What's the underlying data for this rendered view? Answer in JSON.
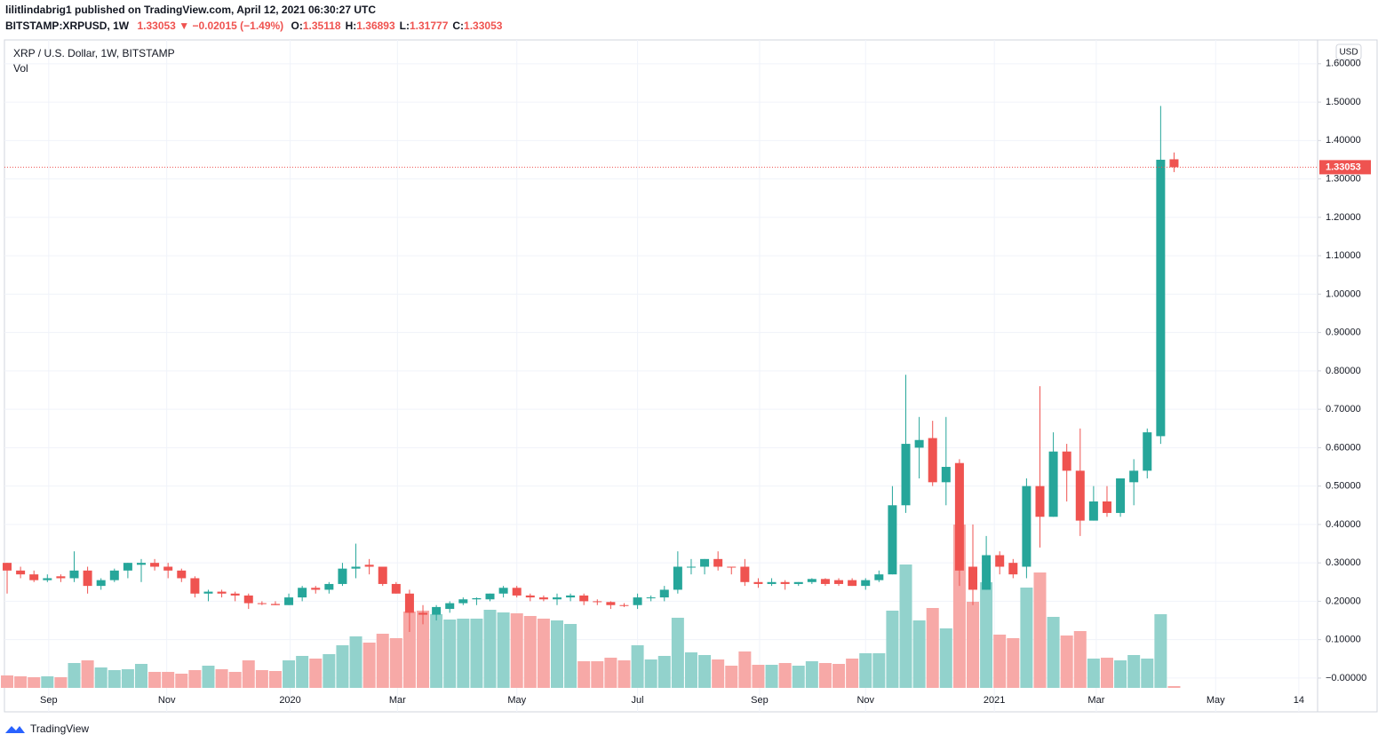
{
  "header": {
    "publisher": "lilitlindabrig1 published on TradingView.com, April 12, 2021 06:30:27 UTC",
    "symbol": "BITSTAMP:XRPUSD, 1W",
    "last": "1.33053",
    "arrow": "▼",
    "change": "−0.02015 (−1.49%)",
    "ohlc": [
      {
        "label": "O:",
        "value": "1.35118"
      },
      {
        "label": "H:",
        "value": "1.36893"
      },
      {
        "label": "L:",
        "value": "1.31777"
      },
      {
        "label": "C:",
        "value": "1.33053"
      }
    ]
  },
  "footer": {
    "brand": "TradingView"
  },
  "chart_data": {
    "type": "candlestick",
    "title": "XRP / U.S. Dollar, 1W, BITSTAMP",
    "volume_label": "Vol",
    "currency": "USD",
    "up_color": "#26a69a",
    "down_color": "#ef5350",
    "up_volume_color": "#92d2cc",
    "down_volume_color": "#f7a9a7",
    "grid": true,
    "xlim": [
      -0.2,
      97.7
    ],
    "xticks": [
      {
        "value": 3.1,
        "label": "Sep"
      },
      {
        "value": 11.9,
        "label": "Nov"
      },
      {
        "value": 21.1,
        "label": "2020"
      },
      {
        "value": 29.1,
        "label": "Mar"
      },
      {
        "value": 38.0,
        "label": "May"
      },
      {
        "value": 47.0,
        "label": "Jul"
      },
      {
        "value": 56.1,
        "label": "Sep"
      },
      {
        "value": 64.0,
        "label": "Nov"
      },
      {
        "value": 73.6,
        "label": "2021"
      },
      {
        "value": 81.2,
        "label": "Mar"
      },
      {
        "value": 90.1,
        "label": "May"
      },
      {
        "value": 96.3,
        "label": "14"
      }
    ],
    "ylim": [
      -0.088,
      1.662
    ],
    "yticks": [
      {
        "value": 0,
        "label": "−0.00000"
      },
      {
        "value": 0.1,
        "label": "0.10000"
      },
      {
        "value": 0.2,
        "label": "0.20000"
      },
      {
        "value": 0.3,
        "label": "0.30000"
      },
      {
        "value": 0.4,
        "label": "0.40000"
      },
      {
        "value": 0.5,
        "label": "0.50000"
      },
      {
        "value": 0.6,
        "label": "0.60000"
      },
      {
        "value": 0.7,
        "label": "0.70000"
      },
      {
        "value": 0.8,
        "label": "0.80000"
      },
      {
        "value": 0.9,
        "label": "0.90000"
      },
      {
        "value": 1.0,
        "label": "1.00000"
      },
      {
        "value": 1.1,
        "label": "1.10000"
      },
      {
        "value": 1.2,
        "label": "1.20000"
      },
      {
        "value": 1.3,
        "label": "1.30000"
      },
      {
        "value": 1.4,
        "label": "1.40000"
      },
      {
        "value": 1.5,
        "label": "1.50000"
      },
      {
        "value": 1.6,
        "label": "1.60000"
      }
    ],
    "last_price_label": "1.33053",
    "open": [
      0.3,
      0.28,
      0.27,
      0.255,
      0.265,
      0.26,
      0.28,
      0.24,
      0.255,
      0.28,
      0.295,
      0.3,
      0.29,
      0.28,
      0.26,
      0.22,
      0.225,
      0.22,
      0.215,
      0.195,
      0.193,
      0.19,
      0.21,
      0.235,
      0.23,
      0.245,
      0.285,
      0.295,
      0.29,
      0.245,
      0.22,
      0.17,
      0.165,
      0.18,
      0.195,
      0.205,
      0.205,
      0.22,
      0.235,
      0.215,
      0.21,
      0.205,
      0.21,
      0.215,
      0.2,
      0.198,
      0.19,
      0.19,
      0.21,
      0.21,
      0.23,
      0.29,
      0.29,
      0.31,
      0.29,
      0.29,
      0.25,
      0.245,
      0.25,
      0.245,
      0.25,
      0.258,
      0.255,
      0.255,
      0.24,
      0.255,
      0.27,
      0.45,
      0.6,
      0.625,
      0.51,
      0.56,
      0.29,
      0.23,
      0.32,
      0.3,
      0.29,
      0.5,
      0.42,
      0.59,
      0.54,
      0.41,
      0.46,
      0.43,
      0.51,
      0.54,
      0.63,
      1.35118
    ],
    "high": [
      0.3,
      0.29,
      0.28,
      0.27,
      0.27,
      0.33,
      0.29,
      0.26,
      0.285,
      0.3,
      0.31,
      0.31,
      0.3,
      0.285,
      0.265,
      0.23,
      0.23,
      0.225,
      0.22,
      0.2,
      0.2,
      0.22,
      0.24,
      0.24,
      0.25,
      0.3,
      0.35,
      0.31,
      0.29,
      0.25,
      0.23,
      0.19,
      0.19,
      0.2,
      0.21,
      0.21,
      0.22,
      0.24,
      0.24,
      0.22,
      0.215,
      0.22,
      0.22,
      0.22,
      0.205,
      0.2,
      0.195,
      0.22,
      0.215,
      0.24,
      0.33,
      0.31,
      0.31,
      0.33,
      0.29,
      0.31,
      0.26,
      0.26,
      0.255,
      0.25,
      0.26,
      0.26,
      0.26,
      0.26,
      0.26,
      0.28,
      0.5,
      0.79,
      0.68,
      0.67,
      0.68,
      0.57,
      0.4,
      0.37,
      0.33,
      0.31,
      0.52,
      0.76,
      0.64,
      0.61,
      0.65,
      0.5,
      0.5,
      0.51,
      0.57,
      0.65,
      1.49,
      1.36893
    ],
    "low": [
      0.22,
      0.26,
      0.25,
      0.25,
      0.25,
      0.25,
      0.22,
      0.23,
      0.25,
      0.26,
      0.25,
      0.28,
      0.26,
      0.25,
      0.21,
      0.2,
      0.21,
      0.2,
      0.18,
      0.19,
      0.19,
      0.19,
      0.2,
      0.22,
      0.22,
      0.24,
      0.26,
      0.27,
      0.24,
      0.22,
      0.12,
      0.14,
      0.15,
      0.17,
      0.19,
      0.19,
      0.2,
      0.21,
      0.21,
      0.2,
      0.2,
      0.19,
      0.2,
      0.19,
      0.19,
      0.18,
      0.185,
      0.18,
      0.2,
      0.2,
      0.22,
      0.27,
      0.27,
      0.28,
      0.27,
      0.24,
      0.235,
      0.24,
      0.23,
      0.24,
      0.245,
      0.24,
      0.24,
      0.24,
      0.23,
      0.25,
      0.27,
      0.43,
      0.52,
      0.5,
      0.45,
      0.24,
      0.19,
      0.23,
      0.27,
      0.26,
      0.26,
      0.34,
      0.42,
      0.46,
      0.37,
      0.41,
      0.42,
      0.42,
      0.45,
      0.52,
      0.61,
      1.31777
    ],
    "close": [
      0.28,
      0.27,
      0.255,
      0.26,
      0.26,
      0.28,
      0.24,
      0.255,
      0.28,
      0.3,
      0.3,
      0.29,
      0.28,
      0.26,
      0.22,
      0.225,
      0.22,
      0.215,
      0.195,
      0.193,
      0.19,
      0.21,
      0.235,
      0.23,
      0.245,
      0.285,
      0.29,
      0.29,
      0.245,
      0.22,
      0.17,
      0.165,
      0.185,
      0.195,
      0.205,
      0.208,
      0.22,
      0.235,
      0.215,
      0.21,
      0.205,
      0.21,
      0.215,
      0.2,
      0.198,
      0.19,
      0.188,
      0.21,
      0.21,
      0.23,
      0.29,
      0.29,
      0.31,
      0.29,
      0.288,
      0.25,
      0.245,
      0.25,
      0.245,
      0.25,
      0.258,
      0.245,
      0.245,
      0.24,
      0.255,
      0.27,
      0.45,
      0.61,
      0.62,
      0.51,
      0.55,
      0.28,
      0.23,
      0.32,
      0.29,
      0.27,
      0.5,
      0.42,
      0.59,
      0.54,
      0.41,
      0.46,
      0.43,
      0.52,
      0.54,
      0.64,
      1.35,
      1.33053
    ],
    "volume": [
      14,
      13,
      12,
      13,
      12,
      28,
      31,
      23,
      20,
      21,
      27,
      18,
      18,
      16,
      20,
      25,
      21,
      18,
      31,
      20,
      19,
      31,
      36,
      33,
      38,
      48,
      58,
      51,
      61,
      56,
      86,
      87,
      83,
      77,
      78,
      78,
      88,
      85,
      84,
      81,
      78,
      76,
      72,
      30,
      30,
      34,
      31,
      48,
      32,
      36,
      79,
      40,
      37,
      32,
      25,
      41,
      26,
      26,
      28,
      25,
      30,
      28,
      27,
      33,
      39,
      39,
      87,
      139,
      76,
      90,
      67,
      184,
      97,
      119,
      60,
      56,
      113,
      130,
      80,
      59,
      64,
      33,
      34,
      31,
      37,
      33,
      83,
      2
    ]
  }
}
